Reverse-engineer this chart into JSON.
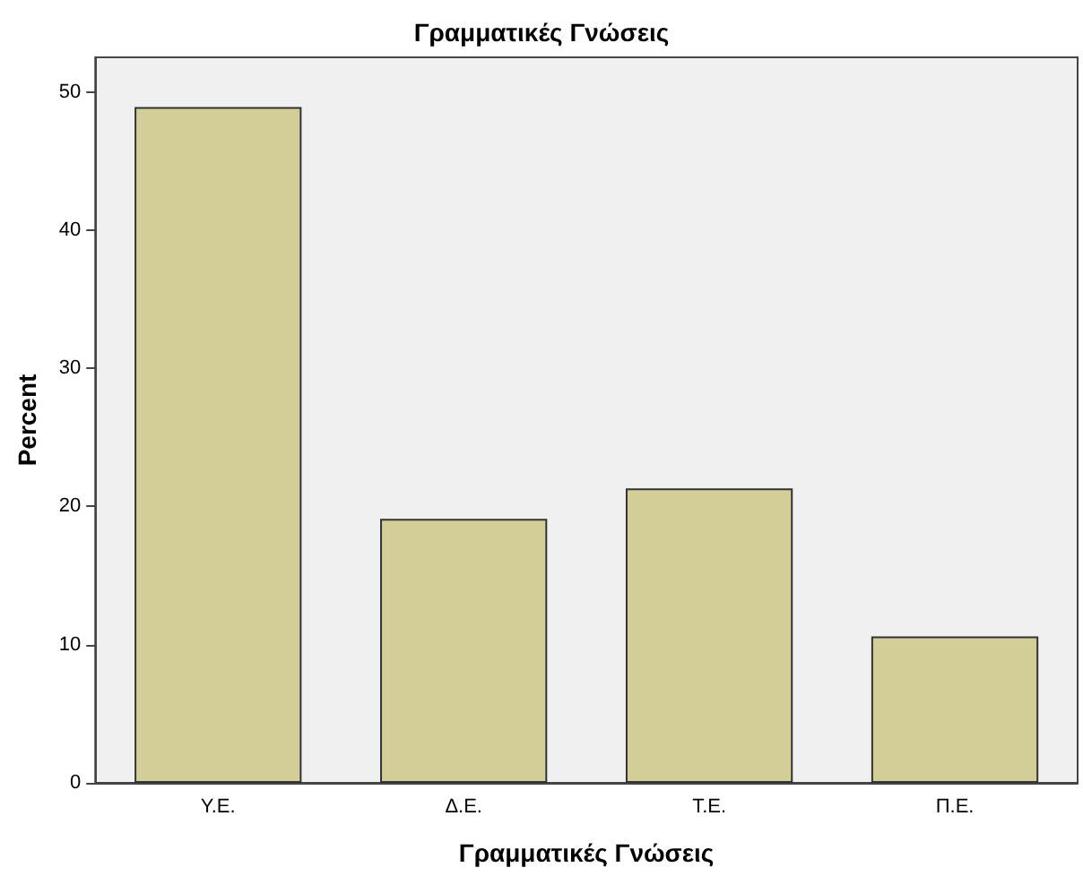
{
  "chart_data": {
    "type": "bar",
    "title": "Γραμματικές Γνώσεις",
    "xlabel": "Γραμματικές Γνώσεις",
    "ylabel": "Percent",
    "categories": [
      "Υ.Ε.",
      "Δ.Ε.",
      "Τ.Ε.",
      "Π.Ε."
    ],
    "values": [
      48.9,
      19.1,
      21.3,
      10.6
    ],
    "color": "#d3ce97",
    "ylim": [
      0,
      52.5
    ],
    "yticks": [
      0,
      10,
      20,
      30,
      40,
      50
    ],
    "grid": false
  }
}
